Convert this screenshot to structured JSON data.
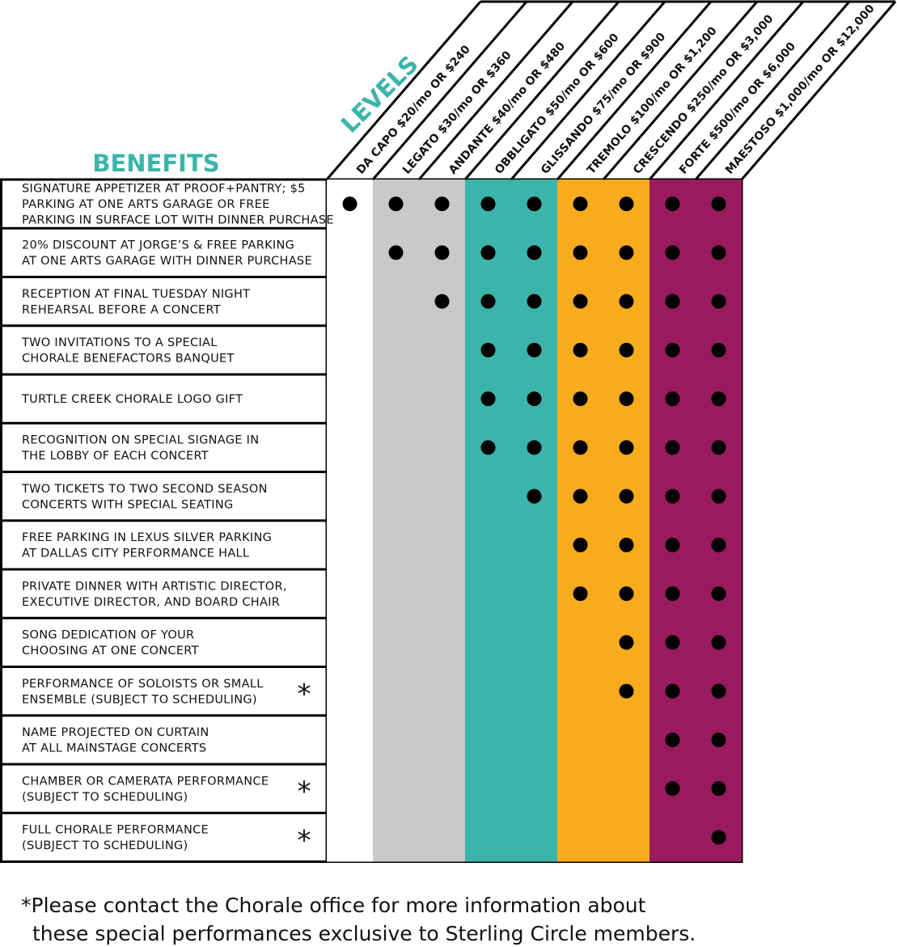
{
  "header": {
    "benefits_title": "BENEFITS",
    "levels_title": "LEVELS"
  },
  "chart_data": {
    "type": "table",
    "levels": [
      {
        "name": "DA CAPO $20/mo OR $240",
        "color": "#ffffff"
      },
      {
        "name": "LEGATO $30/mo OR $360",
        "color": "#c8c9cb"
      },
      {
        "name": "ANDANTE $40/mo OR $480",
        "color": "#c8c9cb"
      },
      {
        "name": "OBBLIGATO $50/mo OR $600",
        "color": "#3bb5ab"
      },
      {
        "name": "GLISSANDO $75/mo OR $900",
        "color": "#3bb5ab"
      },
      {
        "name": "TREMOLO $100/mo OR $1,200",
        "color": "#f8ac1d"
      },
      {
        "name": "CRESCENDO $250/mo OR $3,000",
        "color": "#f8ac1d"
      },
      {
        "name": "FORTE $500/mo OR $6,000",
        "color": "#9a1a5f"
      },
      {
        "name": "MAESTOSO $1,000/mo OR $12,000",
        "color": "#9a1a5f"
      }
    ],
    "benefits": [
      {
        "lines": [
          "SIGNATURE APPETIZER AT PROOF+PANTRY; $5",
          "PARKING AT ONE ARTS GARAGE OR FREE",
          "PARKING IN SURFACE LOT WITH DINNER PURCHASE"
        ],
        "asterisk": false,
        "included": [
          1,
          1,
          1,
          1,
          1,
          1,
          1,
          1,
          1
        ]
      },
      {
        "lines": [
          "20% DISCOUNT AT JORGE’S & FREE PARKING",
          "AT ONE ARTS GARAGE WITH DINNER PURCHASE"
        ],
        "asterisk": false,
        "included": [
          0,
          1,
          1,
          1,
          1,
          1,
          1,
          1,
          1
        ]
      },
      {
        "lines": [
          "RECEPTION AT FINAL TUESDAY NIGHT",
          "REHEARSAL BEFORE A CONCERT"
        ],
        "asterisk": false,
        "included": [
          0,
          0,
          1,
          1,
          1,
          1,
          1,
          1,
          1
        ]
      },
      {
        "lines": [
          "TWO INVITATIONS TO A SPECIAL",
          "CHORALE BENEFACTORS BANQUET"
        ],
        "asterisk": false,
        "included": [
          0,
          0,
          0,
          1,
          1,
          1,
          1,
          1,
          1
        ]
      },
      {
        "lines": [
          "TURTLE CREEK CHORALE LOGO GIFT"
        ],
        "asterisk": false,
        "included": [
          0,
          0,
          0,
          1,
          1,
          1,
          1,
          1,
          1
        ]
      },
      {
        "lines": [
          "RECOGNITION ON SPECIAL SIGNAGE IN",
          "THE LOBBY OF EACH CONCERT"
        ],
        "asterisk": false,
        "included": [
          0,
          0,
          0,
          1,
          1,
          1,
          1,
          1,
          1
        ]
      },
      {
        "lines": [
          "TWO TICKETS TO TWO SECOND SEASON",
          "CONCERTS WITH SPECIAL SEATING"
        ],
        "asterisk": false,
        "included": [
          0,
          0,
          0,
          0,
          1,
          1,
          1,
          1,
          1
        ]
      },
      {
        "lines": [
          "FREE PARKING IN LEXUS SILVER PARKING",
          "AT DALLAS CITY PERFORMANCE HALL"
        ],
        "asterisk": false,
        "included": [
          0,
          0,
          0,
          0,
          0,
          1,
          1,
          1,
          1
        ]
      },
      {
        "lines": [
          "PRIVATE DINNER WITH ARTISTIC DIRECTOR,",
          "EXECUTIVE DIRECTOR, AND BOARD CHAIR"
        ],
        "asterisk": false,
        "included": [
          0,
          0,
          0,
          0,
          0,
          1,
          1,
          1,
          1
        ]
      },
      {
        "lines": [
          "SONG DEDICATION OF YOUR",
          "CHOOSING AT ONE CONCERT"
        ],
        "asterisk": false,
        "included": [
          0,
          0,
          0,
          0,
          0,
          0,
          1,
          1,
          1
        ]
      },
      {
        "lines": [
          "PERFORMANCE OF SOLOISTS OR SMALL",
          "ENSEMBLE (SUBJECT TO SCHEDULING)"
        ],
        "asterisk": true,
        "included": [
          0,
          0,
          0,
          0,
          0,
          0,
          1,
          1,
          1
        ]
      },
      {
        "lines": [
          "NAME PROJECTED ON CURTAIN",
          "AT ALL MAINSTAGE CONCERTS"
        ],
        "asterisk": false,
        "included": [
          0,
          0,
          0,
          0,
          0,
          0,
          0,
          1,
          1
        ]
      },
      {
        "lines": [
          "CHAMBER OR CAMERATA PERFORMANCE",
          "(SUBJECT TO SCHEDULING)"
        ],
        "asterisk": true,
        "included": [
          0,
          0,
          0,
          0,
          0,
          0,
          0,
          1,
          1
        ]
      },
      {
        "lines": [
          "FULL CHORALE PERFORMANCE",
          "(SUBJECT TO SCHEDULING)"
        ],
        "asterisk": true,
        "included": [
          0,
          0,
          0,
          0,
          0,
          0,
          0,
          0,
          1
        ]
      }
    ]
  },
  "footnote": {
    "line1": "*Please contact the Chorale office for more information about",
    "line2": "these special performances exclusive to Sterling Circle members."
  }
}
